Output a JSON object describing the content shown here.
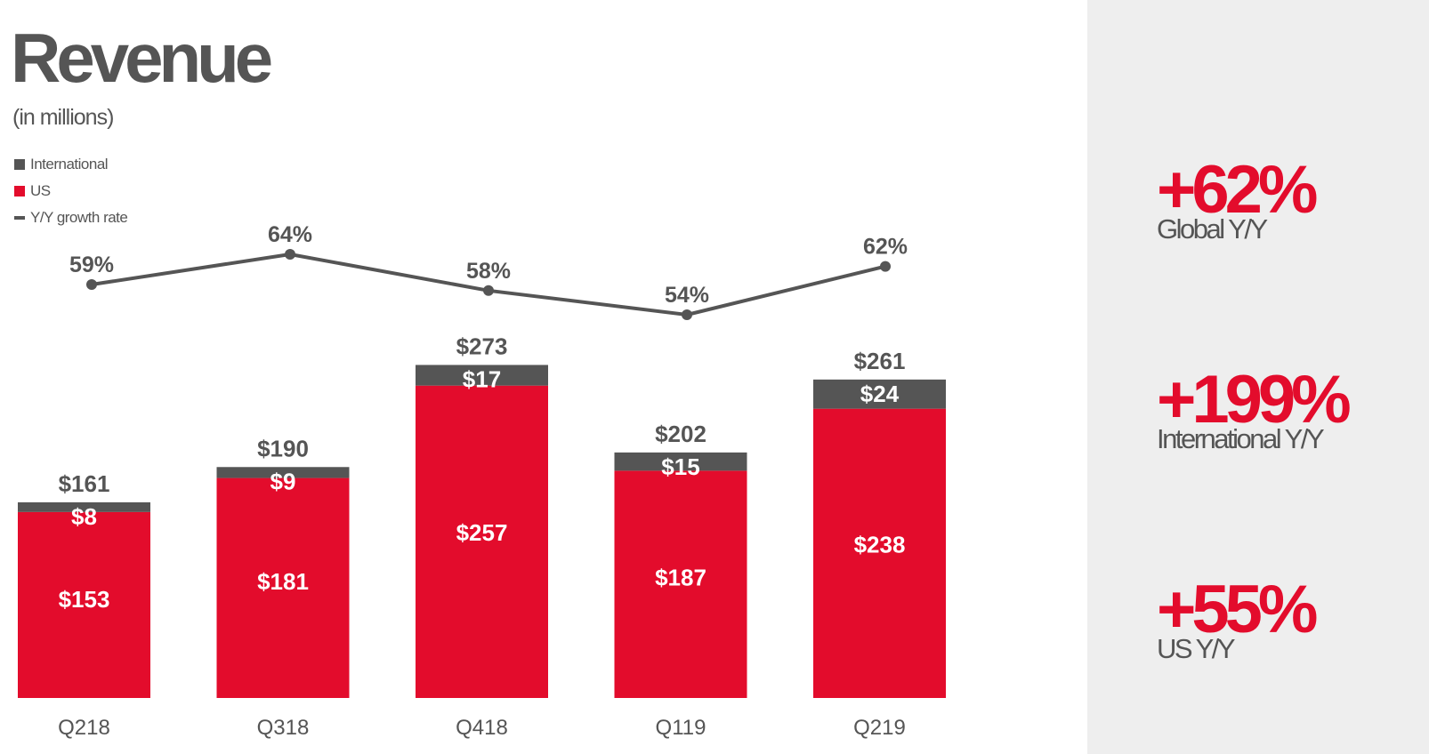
{
  "colors": {
    "us": "#e30c2c",
    "international": "#555555",
    "line": "#555555",
    "panel": "#eeeeee"
  },
  "legend": [
    {
      "label": "International",
      "type": "square",
      "color": "#555555"
    },
    {
      "label": "US",
      "type": "square",
      "color": "#e30c2c"
    },
    {
      "label": "Y/Y growth rate",
      "type": "line",
      "color": "#555555"
    }
  ],
  "chart_data": {
    "type": "bar",
    "stacked": true,
    "title": "Revenue",
    "subtitle": "(in millions)",
    "categories": [
      "Q218",
      "Q318",
      "Q418",
      "Q119",
      "Q219"
    ],
    "series": [
      {
        "name": "US",
        "values": [
          153,
          181,
          257,
          187,
          238
        ],
        "labels": [
          "$153",
          "$181",
          "$257",
          "$187",
          "$238"
        ]
      },
      {
        "name": "International",
        "values": [
          8,
          9,
          17,
          15,
          24
        ],
        "labels": [
          "$8",
          "$9",
          "$17",
          "$15",
          "$24"
        ]
      }
    ],
    "totals": [
      161,
      190,
      273,
      202,
      261
    ],
    "total_labels": [
      "$161",
      "$190",
      "$273",
      "$202",
      "$261"
    ],
    "line_series": {
      "name": "Y/Y growth rate",
      "values": [
        59,
        64,
        58,
        54,
        62
      ],
      "labels": [
        "59%",
        "64%",
        "58%",
        "54%",
        "62%"
      ]
    },
    "legend_position": "top-left",
    "grid": false
  },
  "stats": [
    {
      "value": "+62%",
      "label": "Global Y/Y"
    },
    {
      "value": "+199%",
      "label": "International Y/Y"
    },
    {
      "value": "+55%",
      "label": "US Y/Y"
    }
  ]
}
